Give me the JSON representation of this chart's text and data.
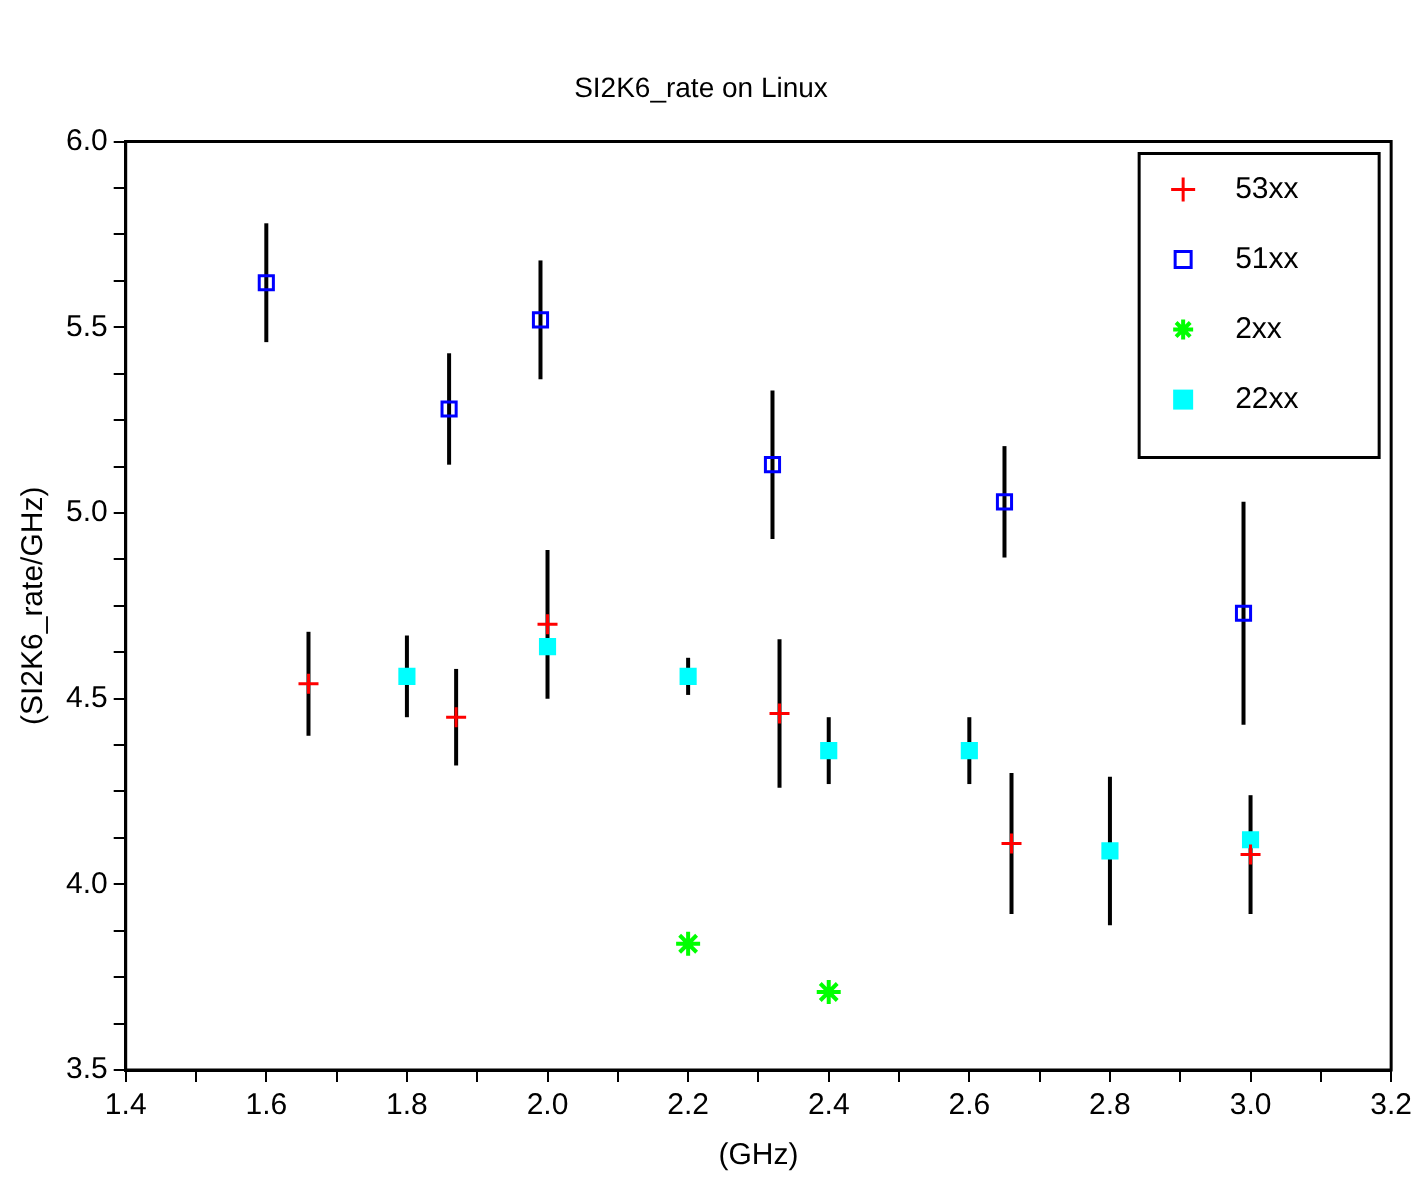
{
  "chart_data": {
    "type": "scatter",
    "title": "SI2K6_rate on Linux",
    "xlabel": "(GHz)",
    "ylabel": "(SI2K6_rate/GHz)",
    "xlim": [
      1.4,
      3.2
    ],
    "xticks": [
      1.4,
      {
        "value": 1.5,
        "label": null
      },
      1.6,
      {
        "value": 1.7,
        "label": null
      },
      1.8,
      {
        "value": 1.9,
        "label": null
      },
      {
        "value": 2.0,
        "label": "2.0"
      },
      {
        "value": 2.1,
        "label": null
      },
      2.2,
      {
        "value": 2.3,
        "label": null
      },
      2.4,
      {
        "value": 2.5,
        "label": null
      },
      2.6,
      {
        "value": 2.7,
        "label": null
      },
      2.8,
      {
        "value": 2.9,
        "label": null
      },
      {
        "value": 3.0,
        "label": "3.0"
      },
      {
        "value": 3.1,
        "label": null
      },
      3.2
    ],
    "ylim": [
      3.5,
      6.0
    ],
    "yticks": [
      3.5,
      {
        "value": 3.625,
        "label": null
      },
      {
        "value": 3.75,
        "label": null
      },
      {
        "value": 3.875,
        "label": null
      },
      {
        "value": 4.0,
        "label": "4.0"
      },
      {
        "value": 4.125,
        "label": null
      },
      {
        "value": 4.25,
        "label": null
      },
      {
        "value": 4.375,
        "label": null
      },
      4.5,
      {
        "value": 4.625,
        "label": null
      },
      {
        "value": 4.75,
        "label": null
      },
      {
        "value": 4.875,
        "label": null
      },
      {
        "value": 5.0,
        "label": "5.0"
      },
      {
        "value": 5.125,
        "label": null
      },
      {
        "value": 5.25,
        "label": null
      },
      {
        "value": 5.375,
        "label": null
      },
      5.5,
      {
        "value": 5.625,
        "label": null
      },
      {
        "value": 5.75,
        "label": null
      },
      {
        "value": 5.875,
        "label": null
      },
      {
        "value": 6.0,
        "label": "6.0"
      }
    ],
    "grid": false,
    "legend": "top right",
    "series": [
      {
        "name": "53xx",
        "color": "#ff0000",
        "marker": "cross",
        "x": [
          1.66,
          1.87,
          2.0,
          2.33,
          2.66,
          3.0
        ],
        "values": [
          4.54,
          4.45,
          4.7,
          4.46,
          4.11,
          4.08
        ],
        "errors": [
          0.14,
          0.13,
          0.2,
          0.2,
          0.19,
          0.16
        ]
      },
      {
        "name": "51xx",
        "color": "#0000ff",
        "marker": "square",
        "x": [
          1.6,
          1.86,
          1.99,
          2.32,
          2.65,
          2.99
        ],
        "values": [
          5.62,
          5.28,
          5.52,
          5.13,
          5.03,
          4.73
        ],
        "errors": [
          0.16,
          0.15,
          0.16,
          0.2,
          0.15,
          0.3
        ]
      },
      {
        "name": "2xx",
        "color": "#00ff00",
        "marker": "cross",
        "x": [
          2.2,
          2.4
        ],
        "values": [
          3.84,
          3.71
        ]
      },
      {
        "name": "22xx",
        "color": "#00ffff",
        "marker": "square",
        "x": [
          1.8,
          2.0,
          2.2,
          2.4,
          2.6,
          2.8,
          3.0
        ],
        "values": [
          4.56,
          4.64,
          4.56,
          4.36,
          4.36,
          4.09,
          4.12
        ],
        "errors": [
          0.11,
          null,
          0.05,
          0.09,
          0.09,
          0.2,
          null
        ]
      }
    ]
  }
}
